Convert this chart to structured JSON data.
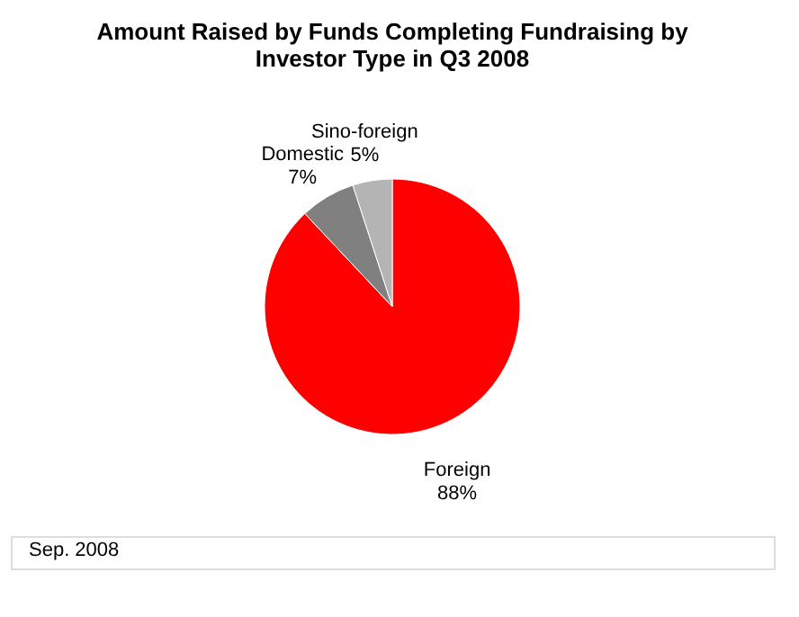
{
  "chart_data": {
    "type": "pie",
    "title": [
      "Amount Raised by Funds Completing Fundraising by",
      "Investor Type in Q3 2008"
    ],
    "categories": [
      "Foreign",
      "Domestic",
      "Sino-foreign"
    ],
    "values": [
      88,
      7,
      5
    ],
    "colors": [
      "#ff0000",
      "#808080",
      "#b4b4b4"
    ],
    "value_labels": [
      "88%",
      "7%",
      "5%"
    ],
    "legend": false,
    "annotations": [
      "Sep. 2008"
    ]
  }
}
